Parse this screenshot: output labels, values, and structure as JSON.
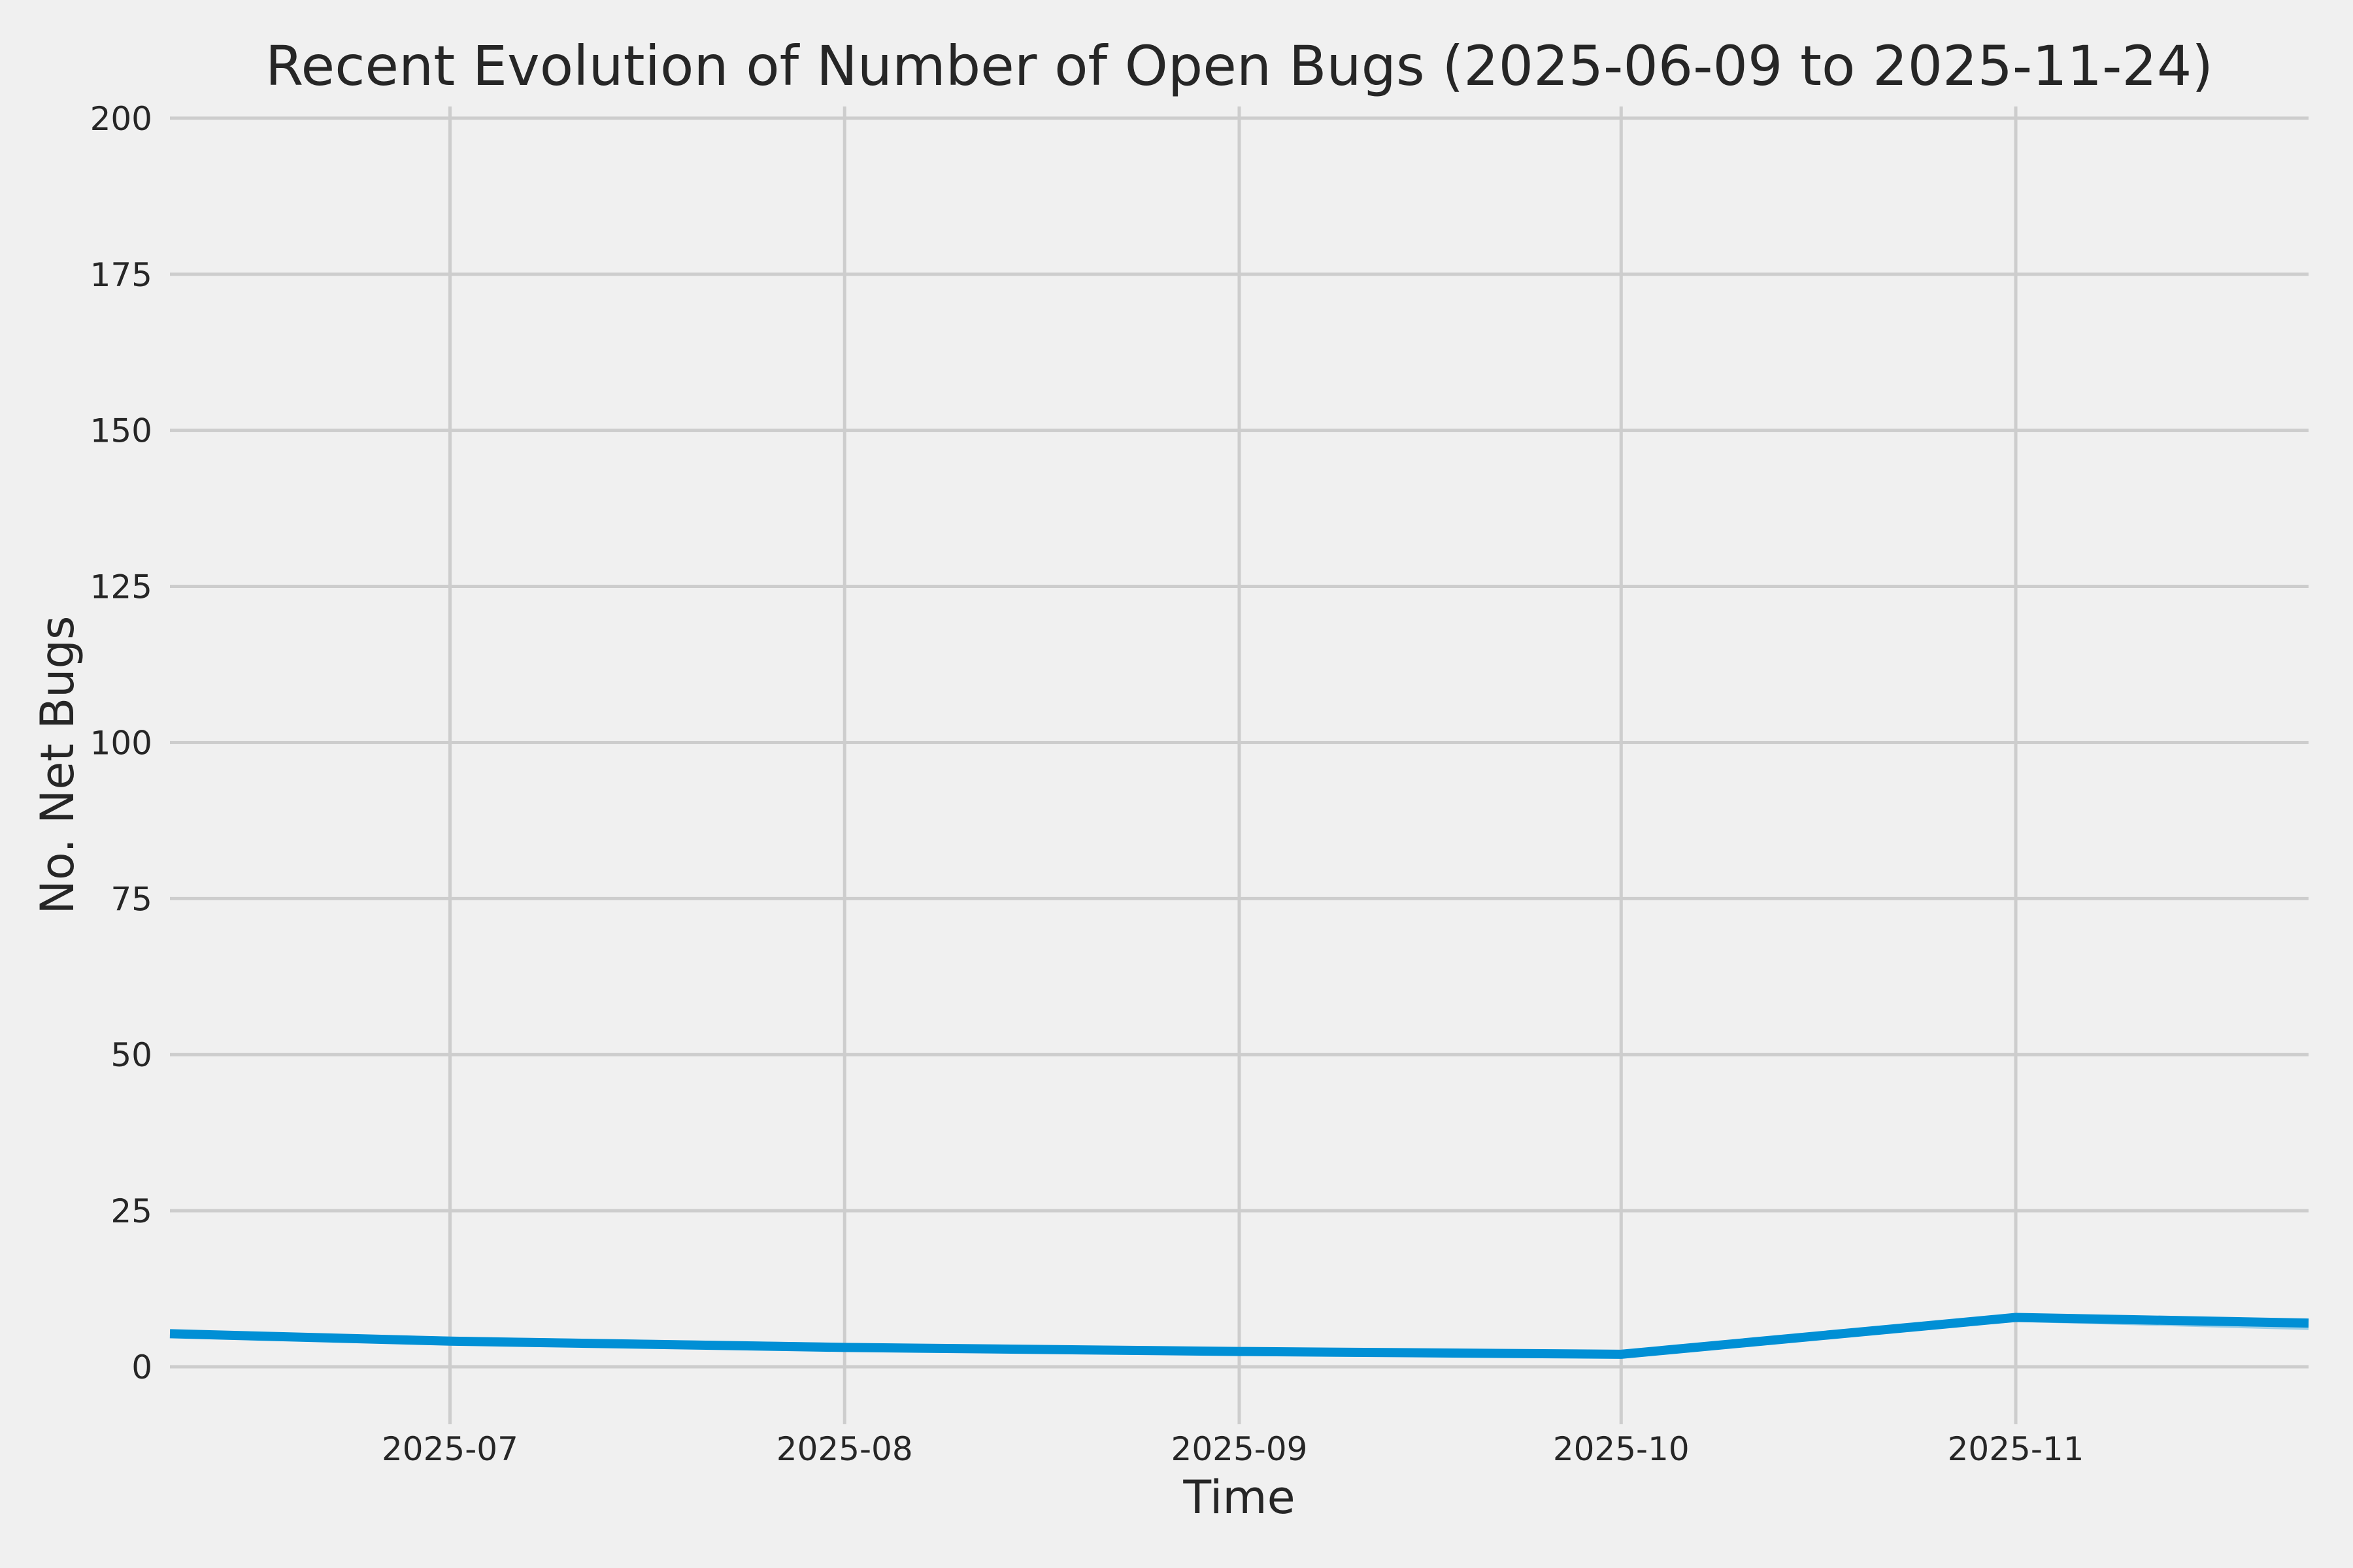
{
  "chart_data": {
    "type": "line",
    "title": "Recent Evolution of Number of Open Bugs (2025-06-09 to 2025-11-24)",
    "xlabel": "Time",
    "ylabel": "No. Net Bugs",
    "x_range": [
      "2025-06-09",
      "2025-11-24"
    ],
    "ylim": [
      -9.2,
      201.8
    ],
    "grid": true,
    "legend": "none",
    "background_color": "#F0F0F0",
    "grid_color": "#CDCDCD",
    "text_color": "#262626",
    "yticks": [
      0,
      25,
      50,
      75,
      100,
      125,
      150,
      175,
      200
    ],
    "xticks": [
      {
        "label": "2025-07",
        "date": "2025-07-01"
      },
      {
        "label": "2025-08",
        "date": "2025-08-01"
      },
      {
        "label": "2025-09",
        "date": "2025-09-01"
      },
      {
        "label": "2025-10",
        "date": "2025-10-01"
      },
      {
        "label": "2025-11",
        "date": "2025-11-01"
      }
    ],
    "series": [
      {
        "name": "open-bugs-trend-light",
        "color": "rgba(0,143,213,0.35)",
        "stroke_width": 9,
        "points": [
          [
            "2025-06-09",
            5.45
          ],
          [
            "2025-07-01",
            4.35
          ],
          [
            "2025-08-01",
            3.35
          ],
          [
            "2025-09-01",
            2.55
          ],
          [
            "2025-10-01",
            2.0
          ],
          [
            "2025-11-01",
            7.65
          ],
          [
            "2025-11-24",
            6.35
          ]
        ]
      },
      {
        "name": "open-bugs",
        "color": "#008FD5",
        "stroke_width": 14,
        "points": [
          [
            "2025-06-09",
            5.3
          ],
          [
            "2025-07-01",
            4.1
          ],
          [
            "2025-08-01",
            3.1
          ],
          [
            "2025-09-01",
            2.45
          ],
          [
            "2025-10-01",
            2.0
          ],
          [
            "2025-11-01",
            7.9
          ],
          [
            "2025-11-24",
            7.0
          ]
        ]
      }
    ]
  }
}
